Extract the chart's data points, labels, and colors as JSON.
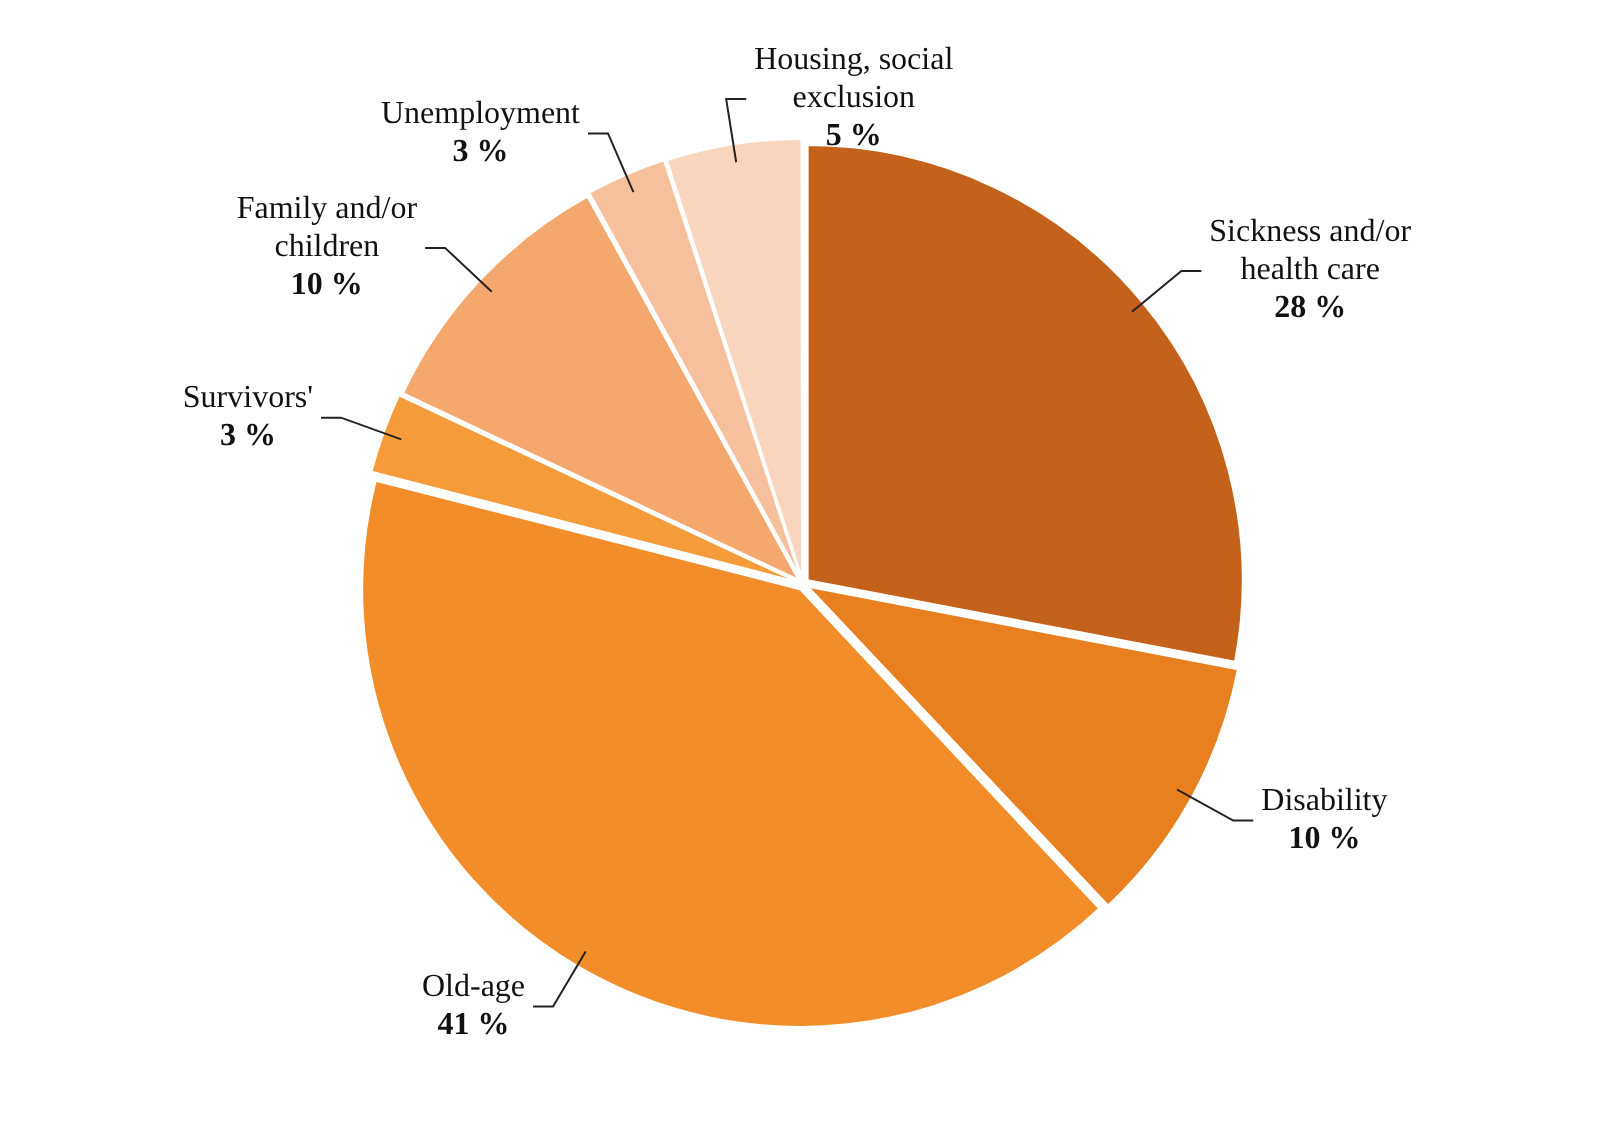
{
  "chart_data": {
    "type": "pie",
    "categories": [
      "Sickness and/or health care",
      "Disability",
      "Old-age",
      "Survivors'",
      "Family and/or children",
      "Unemployment",
      "Housing, social exclusion"
    ],
    "values": [
      28,
      10,
      41,
      3,
      10,
      3,
      5
    ],
    "value_labels": [
      "28 %",
      "10 %",
      "41 %",
      "3 %",
      "10 %",
      "3 %",
      "5 %"
    ],
    "colors": [
      "#c4621c",
      "#e8801f",
      "#f28d2a",
      "#f59b3a",
      "#f5a86e",
      "#f7c09c",
      "#f9d5bd"
    ],
    "legend": false
  }
}
